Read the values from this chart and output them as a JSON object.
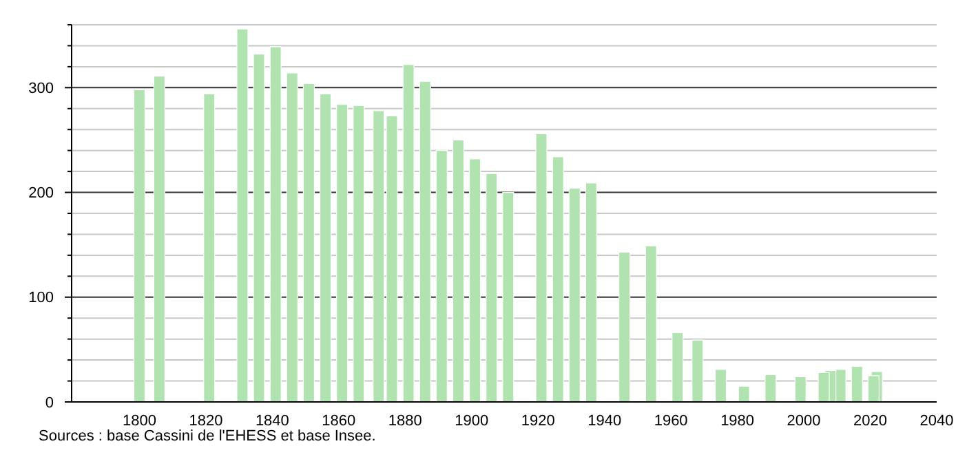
{
  "chart_data": {
    "type": "bar",
    "color": "#b0e3b0",
    "x": [
      1800,
      1806,
      1821,
      1831,
      1836,
      1841,
      1846,
      1851,
      1856,
      1861,
      1866,
      1872,
      1876,
      1881,
      1886,
      1891,
      1896,
      1901,
      1906,
      1911,
      1921,
      1926,
      1931,
      1936,
      1946,
      1954,
      1962,
      1968,
      1975,
      1982,
      1990,
      1999,
      2006,
      2008,
      2011,
      2016,
      2021,
      2022
    ],
    "values": [
      298,
      311,
      294,
      356,
      332,
      339,
      314,
      304,
      294,
      284,
      283,
      278,
      273,
      322,
      306,
      240,
      250,
      232,
      218,
      200,
      256,
      234,
      204,
      209,
      143,
      149,
      66,
      59,
      31,
      15,
      26,
      24,
      28,
      30,
      31,
      34,
      25,
      29
    ],
    "xlim": [
      1780,
      2040
    ],
    "xticks": [
      1800,
      1820,
      1840,
      1860,
      1880,
      1900,
      1920,
      1940,
      1960,
      1980,
      2000,
      2020,
      2040
    ],
    "ylim": [
      0,
      360
    ],
    "yticks": [
      0,
      {
        "value": 20,
        "label": null
      },
      {
        "value": 40,
        "label": null
      },
      {
        "value": 60,
        "label": null
      },
      {
        "value": 80,
        "label": null
      },
      100,
      {
        "value": 120,
        "label": null
      },
      {
        "value": 140,
        "label": null
      },
      {
        "value": 160,
        "label": null
      },
      {
        "value": 180,
        "label": null
      },
      200,
      {
        "value": 220,
        "label": null
      },
      {
        "value": 240,
        "label": null
      },
      {
        "value": 260,
        "label": null
      },
      {
        "value": 280,
        "label": null
      },
      300,
      {
        "value": 320,
        "label": null
      },
      {
        "value": 340,
        "label": null
      },
      {
        "value": 360,
        "label": null
      }
    ],
    "grid": true,
    "annotations": [
      "Sources : base Cassini de l'EHESS et base Insee."
    ]
  }
}
